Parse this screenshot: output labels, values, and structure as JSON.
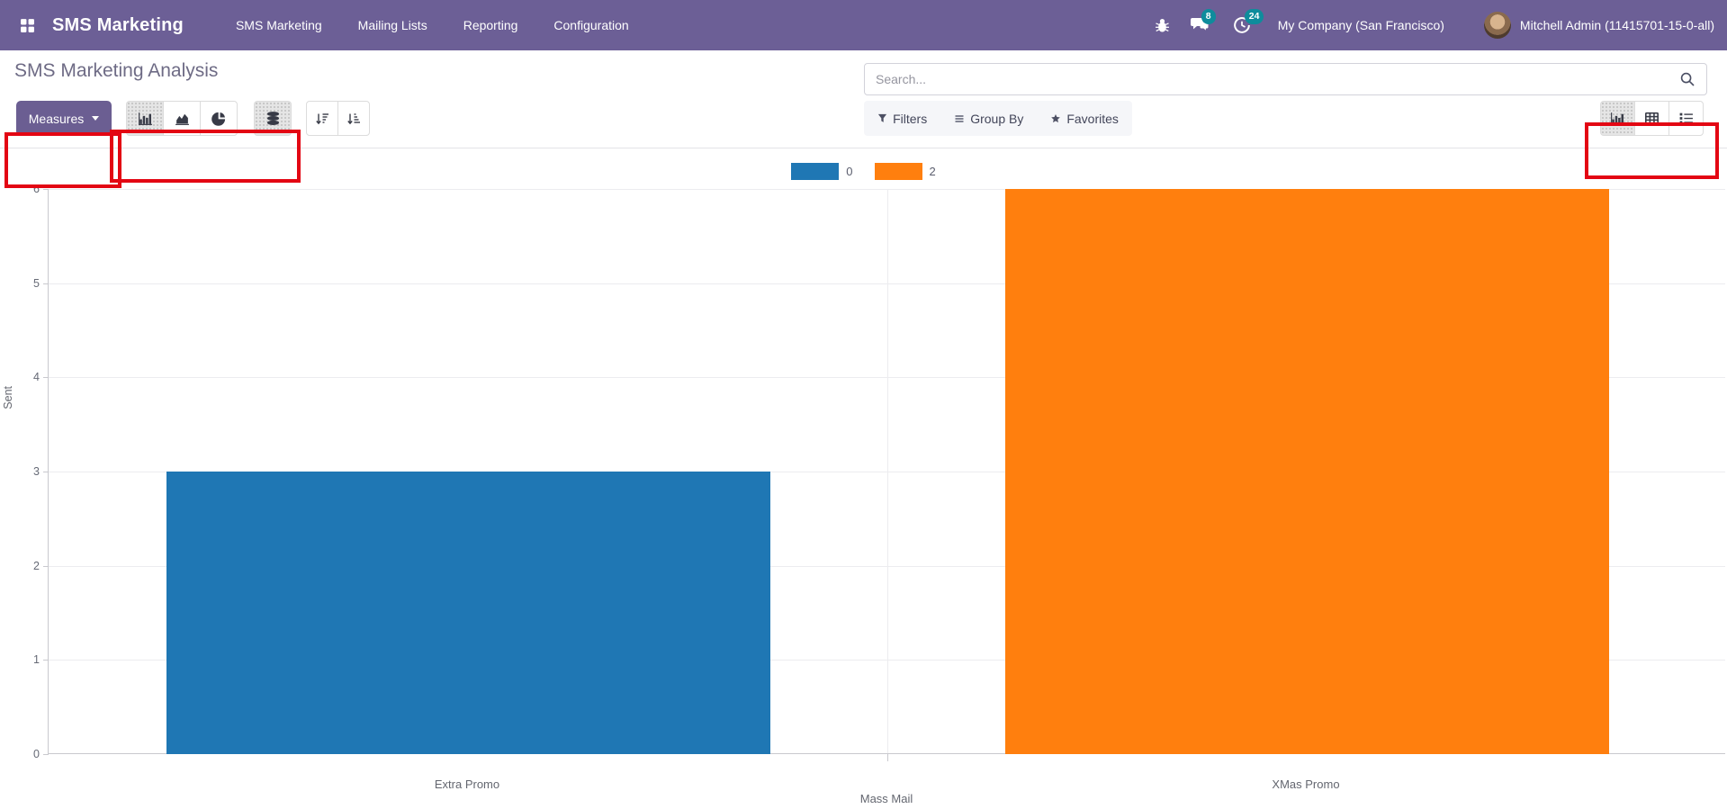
{
  "navbar": {
    "brand": "SMS Marketing",
    "menus": [
      {
        "label": "SMS Marketing"
      },
      {
        "label": "Mailing Lists"
      },
      {
        "label": "Reporting"
      },
      {
        "label": "Configuration"
      }
    ],
    "messages_badge": "8",
    "activities_badge": "24",
    "company": "My Company (San Francisco)",
    "user": "Mitchell Admin (11415701-15-0-all)"
  },
  "control_panel": {
    "title": "SMS Marketing Analysis",
    "search_placeholder": "Search...",
    "measures_label": "Measures",
    "filters_label": "Filters",
    "group_by_label": "Group By",
    "favorites_label": "Favorites"
  },
  "colors": {
    "navbar": "#6c5f96",
    "badge": "#0e8c9c",
    "annotation": "#e30613",
    "bar_blue": "#1f77b4",
    "bar_orange": "#ff7f0e"
  },
  "chart_data": {
    "type": "bar",
    "title": "",
    "xlabel": "Mass Mail",
    "ylabel": "Sent",
    "ylim": [
      0,
      6
    ],
    "yticks": [
      0,
      1,
      2,
      3,
      4,
      5,
      6
    ],
    "grid": true,
    "legend_position": "top",
    "legend": [
      {
        "label": "0",
        "color": "#1f77b4"
      },
      {
        "label": "2",
        "color": "#ff7f0e"
      }
    ],
    "categories": [
      "Extra Promo",
      "XMas Promo"
    ],
    "bars": [
      {
        "category": "Extra Promo",
        "legend": "0",
        "value": 3,
        "color": "#1f77b4"
      },
      {
        "category": "XMas Promo",
        "legend": "2",
        "value": 6,
        "color": "#ff7f0e"
      }
    ]
  }
}
